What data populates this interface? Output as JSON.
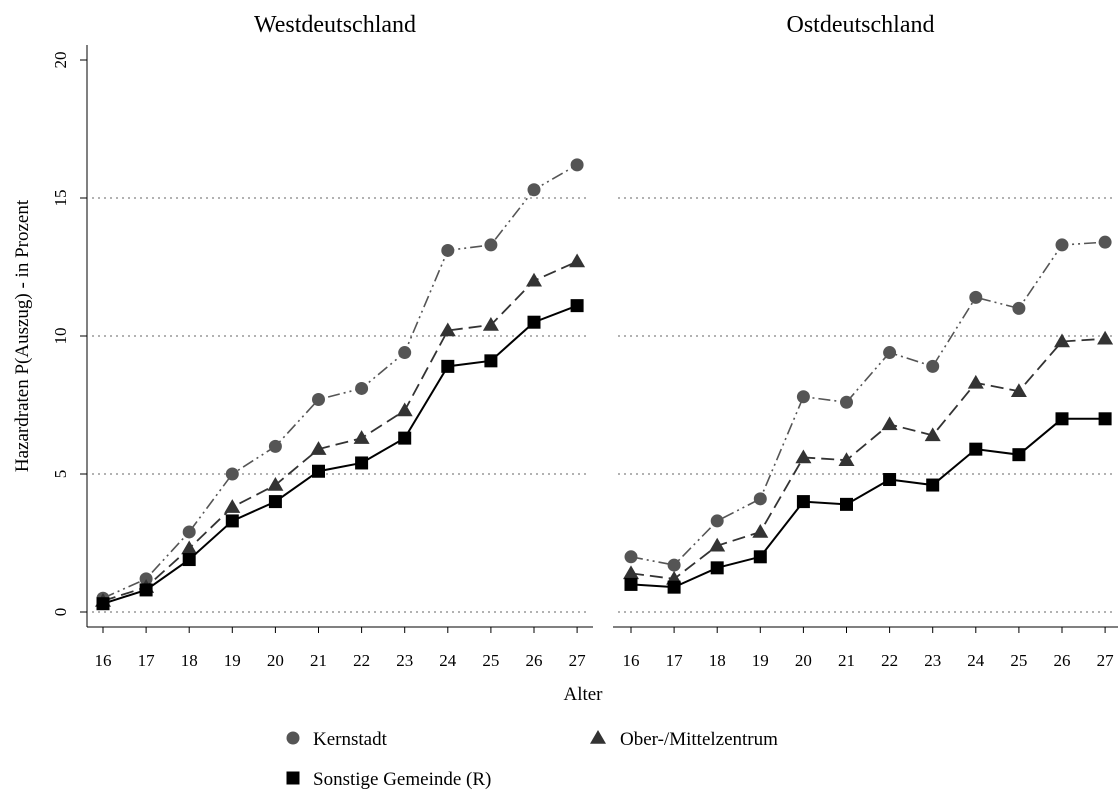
{
  "chart_data": {
    "type": "line",
    "ylabel": "Hazardraten P(Auszug) - in Prozent",
    "xlabel": "Alter",
    "x": [
      16,
      17,
      18,
      19,
      20,
      21,
      22,
      23,
      24,
      25,
      26,
      27
    ],
    "ylim": [
      0,
      20
    ],
    "yticks": [
      0,
      5,
      10,
      15,
      20
    ],
    "grid": "dotted horizontal lines at y = 0, 5, 10, 15",
    "legend_position": "bottom",
    "legend": [
      "Kernstadt",
      "Ober-/Mittelzentrum",
      "Sonstige Gemeinde (R)"
    ],
    "colors": {
      "Kernstadt": "#555555",
      "Ober-/Mittelzentrum": "#333333",
      "Sonstige Gemeinde (R)": "#000000",
      "grid": "#999999"
    },
    "panels": [
      {
        "title": "Westdeutschland",
        "series": [
          {
            "name": "Kernstadt",
            "marker": "circle",
            "line": "dash-dot-dot",
            "values": [
              0.5,
              1.2,
              2.9,
              5.0,
              6.0,
              7.7,
              8.1,
              9.4,
              13.1,
              13.3,
              15.3,
              16.2
            ]
          },
          {
            "name": "Ober-/Mittelzentrum",
            "marker": "triangle",
            "line": "dashed",
            "values": [
              0.4,
              0.9,
              2.3,
              3.8,
              4.6,
              5.9,
              6.3,
              7.3,
              10.2,
              10.4,
              12.0,
              12.7
            ]
          },
          {
            "name": "Sonstige Gemeinde (R)",
            "marker": "square",
            "line": "solid",
            "values": [
              0.3,
              0.8,
              1.9,
              3.3,
              4.0,
              5.1,
              5.4,
              6.3,
              8.9,
              9.1,
              10.5,
              11.1
            ]
          }
        ]
      },
      {
        "title": "Ostdeutschland",
        "series": [
          {
            "name": "Kernstadt",
            "marker": "circle",
            "line": "dash-dot-dot",
            "values": [
              2.0,
              1.7,
              3.3,
              4.1,
              7.8,
              7.6,
              9.4,
              8.9,
              11.4,
              11.0,
              13.3,
              13.4
            ]
          },
          {
            "name": "Ober-/Mittelzentrum",
            "marker": "triangle",
            "line": "dashed",
            "values": [
              1.4,
              1.2,
              2.4,
              2.9,
              5.6,
              5.5,
              6.8,
              6.4,
              8.3,
              8.0,
              9.8,
              9.9
            ]
          },
          {
            "name": "Sonstige Gemeinde (R)",
            "marker": "square",
            "line": "solid",
            "values": [
              1.0,
              0.9,
              1.6,
              2.0,
              4.0,
              3.9,
              4.8,
              4.6,
              5.9,
              5.7,
              7.0,
              7.0
            ]
          }
        ]
      }
    ]
  }
}
